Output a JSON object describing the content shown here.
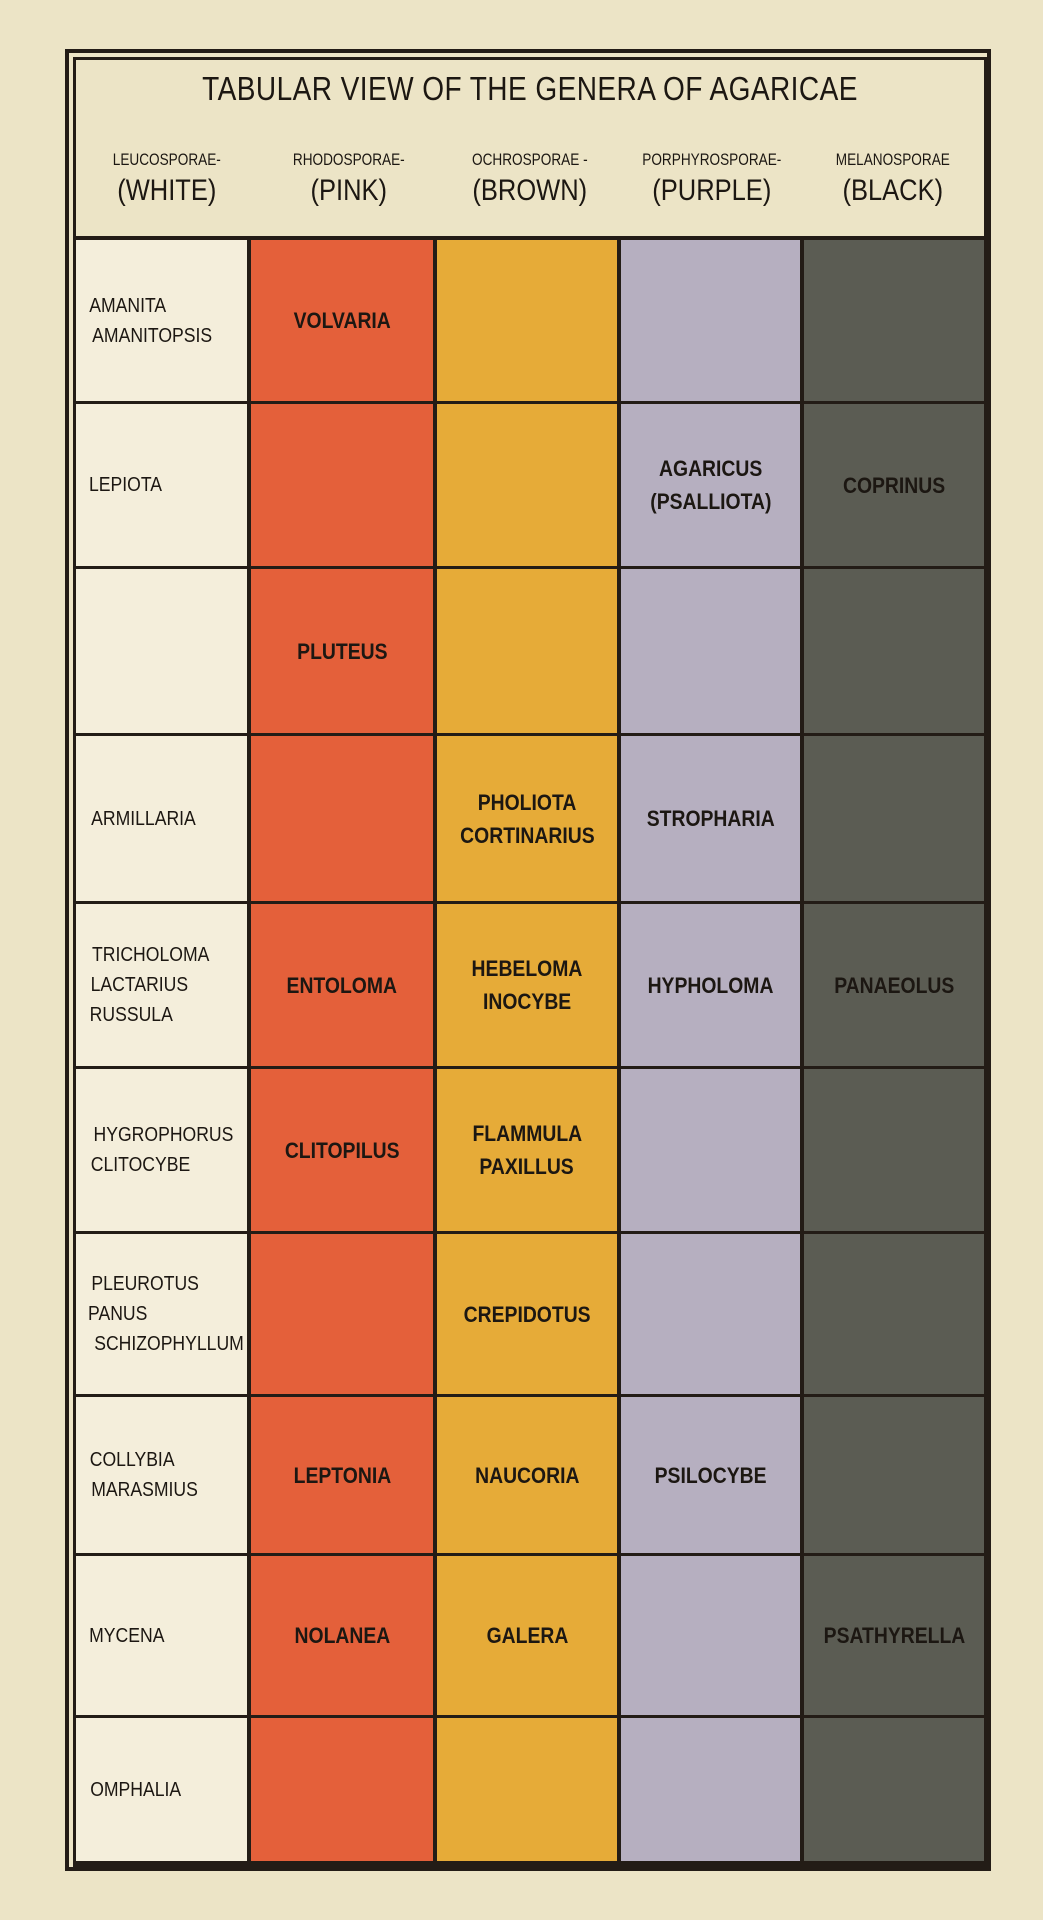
{
  "title": "TABULAR VIEW OF THE GENERA OF AGARICAE",
  "columns": [
    {
      "latin": "LEUCOSPORAE-",
      "color_name": "(WHITE)",
      "fill": "#f4eedb"
    },
    {
      "latin": "RHODOSPORAE-",
      "color_name": "(PINK)",
      "fill": "#e4603a"
    },
    {
      "latin": "OCHROSPORAE -",
      "color_name": "(BROWN)",
      "fill": "#e6ab38"
    },
    {
      "latin": "PORPHYROSPORAE-",
      "color_name": "(PURPLE)",
      "fill": "#b6afc0"
    },
    {
      "latin": "MELANOSPORAE",
      "color_name": "(BLACK)",
      "fill": "#5b5c53"
    }
  ],
  "rows": [
    [
      [
        "AMANITA",
        "AMANITOPSIS"
      ],
      [
        "VOLVARIA"
      ],
      [],
      [],
      []
    ],
    [
      [
        "LEPIOTA"
      ],
      [],
      [],
      [
        "AGARICUS",
        "(PSALLIOTA)"
      ],
      [
        "COPRINUS"
      ]
    ],
    [
      [],
      [
        "PLUTEUS"
      ],
      [],
      [],
      []
    ],
    [
      [
        "ARMILLARIA"
      ],
      [],
      [
        "PHOLIOTA",
        "CORTINARIUS"
      ],
      [
        "STROPHARIA"
      ],
      []
    ],
    [
      [
        "TRICHOLOMA",
        "LACTARIUS",
        "RUSSULA"
      ],
      [
        "ENTOLOMA"
      ],
      [
        "HEBELOMA",
        "INOCYBE"
      ],
      [
        "HYPHOLOMA"
      ],
      [
        "PANAEOLUS"
      ]
    ],
    [
      [
        "HYGROPHORUS",
        "CLITOCYBE"
      ],
      [
        "CLITOPILUS"
      ],
      [
        "FLAMMULA",
        "PAXILLUS"
      ],
      [],
      []
    ],
    [
      [
        "PLEUROTUS",
        "PANUS",
        "SCHIZOPHYLLUM"
      ],
      [],
      [
        "CREPIDOTUS"
      ],
      [],
      []
    ],
    [
      [
        "COLLYBIA",
        "MARASMIUS"
      ],
      [
        "LEPTONIA"
      ],
      [
        "NAUCORIA"
      ],
      [
        "PSILOCYBE"
      ],
      []
    ],
    [
      [
        "MYCENA"
      ],
      [
        "NOLANEA"
      ],
      [
        "GALERA"
      ],
      [],
      [
        "PSATHYRELLA"
      ]
    ],
    [
      [
        "OMPHALIA"
      ],
      [],
      [],
      [],
      []
    ]
  ]
}
